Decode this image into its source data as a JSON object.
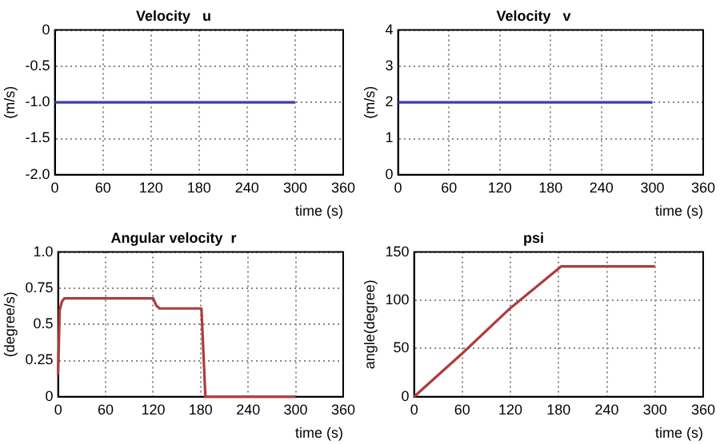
{
  "chart_data": [
    {
      "type": "line",
      "title": "Velocity   u",
      "xlabel": "time (s)",
      "ylabel": "(m/s)",
      "x": [
        0,
        300
      ],
      "series": [
        {
          "color": "#3b3bb0",
          "values": [
            -1,
            -1
          ]
        }
      ],
      "xlim": [
        0,
        360
      ],
      "xticks": [
        0,
        60,
        120,
        180,
        240,
        300,
        360
      ],
      "ylim": [
        -2,
        0
      ],
      "yticks": [
        {
          "value": -2,
          "label": "-2.0"
        },
        -1.5,
        {
          "value": -1,
          "label": "-1.0"
        },
        -0.5,
        0
      ],
      "grid": true
    },
    {
      "type": "line",
      "title": "Velocity   v",
      "xlabel": "time (s)",
      "ylabel": "(m/s)",
      "x": [
        0,
        300
      ],
      "series": [
        {
          "color": "#3b3bb0",
          "values": [
            2,
            2
          ]
        }
      ],
      "xlim": [
        0,
        360
      ],
      "xticks": [
        0,
        60,
        120,
        180,
        240,
        300,
        360
      ],
      "ylim": [
        0,
        4
      ],
      "yticks": [
        0,
        1,
        2,
        3,
        4
      ],
      "grid": true
    },
    {
      "type": "line",
      "title": "Angular velocity  r",
      "xlabel": "time (s)",
      "ylabel": "(degree/s)",
      "x": [
        0,
        2,
        5,
        8,
        120,
        124,
        128,
        181,
        186,
        300
      ],
      "series": [
        {
          "color": "#b03b3b",
          "values": [
            0.15,
            0.6,
            0.66,
            0.68,
            0.68,
            0.63,
            0.61,
            0.61,
            0,
            0
          ]
        }
      ],
      "xlim": [
        0,
        360
      ],
      "xticks": [
        0,
        60,
        120,
        180,
        240,
        300,
        360
      ],
      "ylim": [
        0,
        1
      ],
      "yticks": [
        0,
        0.25,
        0.5,
        0.75,
        {
          "value": 1,
          "label": "1.0"
        }
      ],
      "grid": true
    },
    {
      "type": "line",
      "title": "psi",
      "xlabel": "time (s)",
      "ylabel": "angle(degree)",
      "x": [
        0,
        60,
        120,
        183,
        300
      ],
      "series": [
        {
          "color": "#b03b3b",
          "values": [
            0,
            45,
            92,
            135,
            135
          ]
        }
      ],
      "xlim": [
        0,
        360
      ],
      "xticks": [
        0,
        60,
        120,
        180,
        240,
        300,
        360
      ],
      "ylim": [
        0,
        150
      ],
      "yticks": [
        0,
        50,
        100,
        150
      ],
      "grid": true
    }
  ]
}
